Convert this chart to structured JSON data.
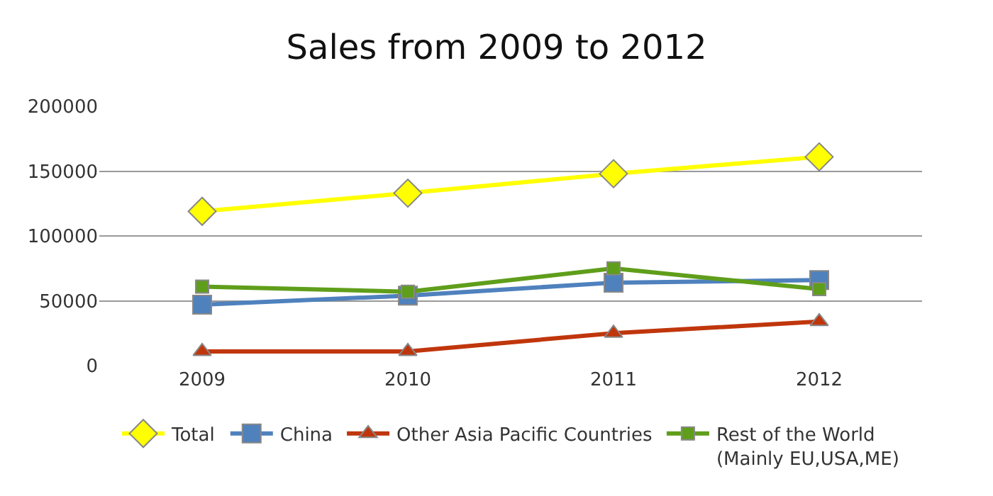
{
  "chart_data": {
    "type": "line",
    "title": "Sales from 2009 to 2012",
    "categories": [
      "2009",
      "2010",
      "2011",
      "2012"
    ],
    "series": [
      {
        "name": "Total",
        "color": "#ffff00",
        "marker": "diamond",
        "values": [
          119000,
          133000,
          148000,
          161000
        ]
      },
      {
        "name": "China",
        "color": "#4f81bd",
        "marker": "square",
        "values": [
          47000,
          54000,
          64000,
          66000
        ]
      },
      {
        "name": "Other Asia Pacific Countries",
        "color": "#c0360c",
        "marker": "triangle",
        "values": [
          11000,
          11000,
          25000,
          34000
        ]
      },
      {
        "name": "Rest of the World\n(Mainly EU,USA,ME)",
        "color": "#5f9e1a",
        "marker": "square",
        "values": [
          61000,
          57000,
          75000,
          59000
        ]
      }
    ],
    "ylim": [
      0,
      200000
    ],
    "yticks": [
      0,
      50000,
      100000,
      150000,
      200000
    ],
    "grid": "y",
    "legend": "bottom"
  }
}
